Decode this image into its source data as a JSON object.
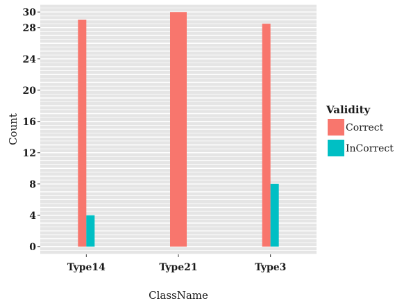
{
  "chart_data": {
    "type": "bar",
    "xlabel": "ClassName",
    "ylabel": "Count",
    "categories": [
      "Type14",
      "Type21",
      "Type3"
    ],
    "y_ticks": [
      0,
      4,
      8,
      12,
      16,
      20,
      24,
      28,
      30
    ],
    "ylim": [
      -1,
      31
    ],
    "grid": true,
    "legend": {
      "title": "Validity",
      "position": "right"
    },
    "series": [
      {
        "name": "Correct",
        "color": "#F8766D",
        "values": [
          29,
          30,
          28.5
        ]
      },
      {
        "name": "InCorrect",
        "color": "#00BFC4",
        "values": [
          4,
          0,
          8
        ]
      }
    ]
  }
}
